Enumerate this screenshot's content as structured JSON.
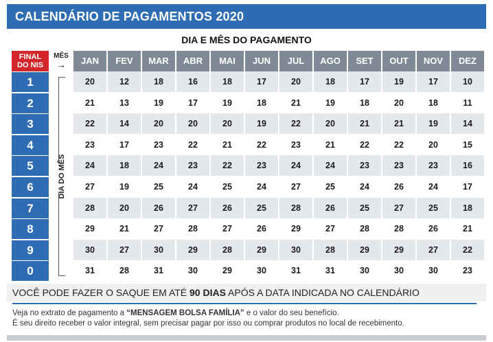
{
  "title": "CALENDÁRIO DE PAGAMENTOS 2020",
  "subtitle": "DIA E MÊS DO PAGAMENTO",
  "header": {
    "final_nis_line1": "FINAL",
    "final_nis_line2": "DO NIS",
    "mes_label": "MÊS",
    "mes_arrow": "→",
    "dia_do_mes": "DIA DO MÊS"
  },
  "months": [
    "JAN",
    "FEV",
    "MAR",
    "ABR",
    "MAI",
    "JUN",
    "JUL",
    "AGO",
    "SET",
    "OUT",
    "NOV",
    "DEZ"
  ],
  "rows": [
    {
      "nis": "1",
      "days": [
        "20",
        "12",
        "18",
        "16",
        "18",
        "17",
        "20",
        "18",
        "17",
        "19",
        "17",
        "10"
      ]
    },
    {
      "nis": "2",
      "days": [
        "21",
        "13",
        "19",
        "17",
        "19",
        "18",
        "21",
        "19",
        "18",
        "20",
        "18",
        "11"
      ]
    },
    {
      "nis": "3",
      "days": [
        "22",
        "14",
        "20",
        "20",
        "20",
        "19",
        "22",
        "20",
        "21",
        "21",
        "19",
        "14"
      ]
    },
    {
      "nis": "4",
      "days": [
        "23",
        "17",
        "23",
        "22",
        "21",
        "22",
        "23",
        "21",
        "22",
        "22",
        "20",
        "15"
      ]
    },
    {
      "nis": "5",
      "days": [
        "24",
        "18",
        "24",
        "23",
        "22",
        "23",
        "24",
        "24",
        "23",
        "23",
        "23",
        "16"
      ]
    },
    {
      "nis": "6",
      "days": [
        "27",
        "19",
        "25",
        "24",
        "25",
        "24",
        "27",
        "25",
        "24",
        "26",
        "24",
        "17"
      ]
    },
    {
      "nis": "7",
      "days": [
        "28",
        "20",
        "26",
        "27",
        "26",
        "25",
        "28",
        "26",
        "25",
        "27",
        "25",
        "18"
      ]
    },
    {
      "nis": "8",
      "days": [
        "29",
        "21",
        "27",
        "28",
        "27",
        "26",
        "29",
        "27",
        "28",
        "28",
        "26",
        "21"
      ]
    },
    {
      "nis": "9",
      "days": [
        "30",
        "27",
        "30",
        "29",
        "28",
        "29",
        "30",
        "28",
        "29",
        "29",
        "27",
        "22"
      ]
    },
    {
      "nis": "0",
      "days": [
        "31",
        "28",
        "31",
        "30",
        "29",
        "30",
        "31",
        "31",
        "30",
        "30",
        "30",
        "23"
      ]
    }
  ],
  "notes": {
    "main_before": "VOCÊ PODE FAZER O SAQUE EM ATÉ ",
    "main_bold": "90 DIAS",
    "main_after": " APÓS A DATA INDICADA NO CALENDÁRIO",
    "line1_before": "Veja no extrato de pagamento a ",
    "line1_bold": "“MENSAGEM BOLSA FAMÍLIA”",
    "line1_after": " e o valor do seu benefício.",
    "line2": "É seu direito receber o valor integral, sem precisar pagar por isso ou comprar produtos no local de recebimento."
  },
  "colors": {
    "brand_blue": "#2e6db4",
    "header_red": "#d3262b",
    "month_gray": "#7f8a96",
    "row_stripe": "#e4e8ec"
  }
}
